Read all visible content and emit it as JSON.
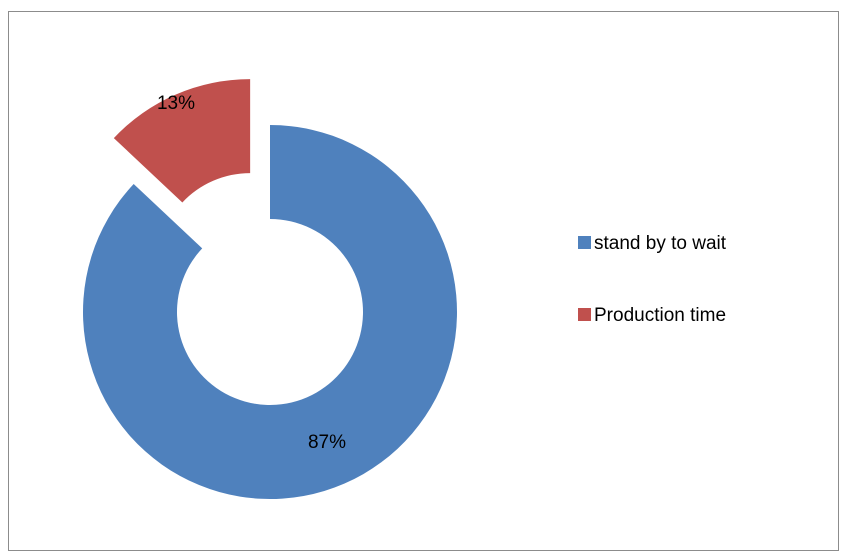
{
  "chart_data": {
    "type": "pie",
    "variant": "donut-exploded",
    "categories": [
      "stand by to wait",
      "Production time"
    ],
    "values": [
      87,
      13
    ],
    "labels": [
      "87%",
      "13%"
    ],
    "colors": [
      "#4f81bd",
      "#c0504d"
    ],
    "title": "",
    "legend": {
      "position": "right",
      "entries": [
        "stand by to wait",
        "Production time"
      ]
    }
  }
}
